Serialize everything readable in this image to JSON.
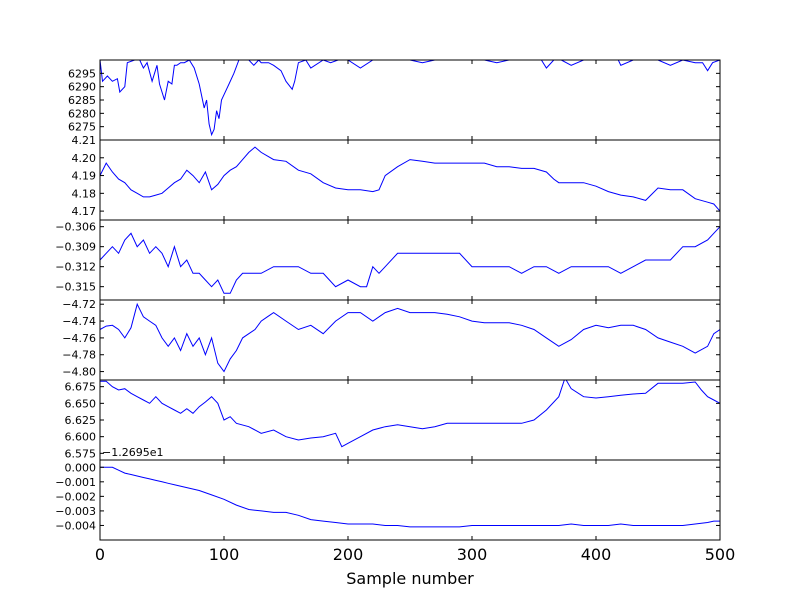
{
  "chart_data": {
    "type": "line",
    "xlabel": "Sample number",
    "xlim": [
      0,
      500
    ],
    "xticks": [
      0,
      100,
      200,
      300,
      400,
      500
    ],
    "line_color": "#0000ff",
    "panels": [
      {
        "ylim": [
          6270,
          6300
        ],
        "yticks": [
          "6275",
          "6280",
          "6285",
          "6290",
          "6295"
        ],
        "yvalues": [
          6275,
          6280,
          6285,
          6290,
          6295
        ],
        "series": {
          "x": [
            0,
            2,
            6,
            10,
            14,
            16,
            20,
            22,
            28,
            32,
            35,
            38,
            42,
            46,
            48,
            50,
            52,
            55,
            58,
            60,
            62,
            65,
            68,
            72,
            76,
            80,
            84,
            86,
            88,
            90,
            92,
            94,
            96,
            98,
            100,
            104,
            108,
            112,
            116,
            120,
            124,
            128,
            130,
            136,
            140,
            146,
            150,
            155,
            157,
            160,
            166,
            170,
            180,
            186,
            192,
            200,
            210,
            220,
            230,
            240,
            250,
            260,
            270,
            280,
            290,
            300,
            310,
            320,
            330,
            340,
            350,
            356,
            360,
            366,
            372,
            380,
            390,
            400,
            410,
            418,
            420,
            430,
            440,
            450,
            460,
            470,
            480,
            486,
            490,
            494,
            500
          ],
          "y": [
            6300,
            6292,
            6294,
            6292,
            6293,
            6288,
            6290,
            6299,
            6300,
            6300,
            6297,
            6299,
            6292,
            6298,
            6291,
            6288,
            6285,
            6292,
            6291,
            6298,
            6298,
            6299,
            6299,
            6300,
            6297,
            6291,
            6282,
            6285,
            6276,
            6272,
            6274,
            6281,
            6278,
            6285,
            6287,
            6291,
            6295,
            6300,
            6300,
            6300,
            6298,
            6300,
            6299,
            6299,
            6298,
            6296,
            6292,
            6289,
            6292,
            6299,
            6300,
            6297,
            6300,
            6299,
            6300,
            6300,
            6297,
            6300,
            6300,
            6300,
            6300,
            6299,
            6300,
            6300,
            6300,
            6300,
            6300,
            6299,
            6300,
            6300,
            6300,
            6300,
            6297,
            6300,
            6300,
            6298,
            6300,
            6300,
            6300,
            6300,
            6298,
            6300,
            6300,
            6300,
            6298,
            6300,
            6299,
            6299,
            6296,
            6299,
            6300
          ]
        }
      },
      {
        "ylim": [
          4.165,
          4.21
        ],
        "yticks": [
          "4.17",
          "4.18",
          "4.19",
          "4.20",
          "4.21"
        ],
        "yvalues": [
          4.17,
          4.18,
          4.19,
          4.2,
          4.21
        ],
        "series": {
          "x": [
            0,
            5,
            10,
            15,
            20,
            25,
            30,
            35,
            40,
            45,
            50,
            55,
            60,
            65,
            70,
            75,
            80,
            85,
            90,
            95,
            100,
            105,
            110,
            115,
            120,
            125,
            130,
            140,
            150,
            160,
            170,
            180,
            190,
            200,
            210,
            220,
            225,
            230,
            240,
            250,
            260,
            270,
            280,
            290,
            300,
            310,
            320,
            330,
            340,
            350,
            360,
            366,
            370,
            380,
            390,
            400,
            410,
            420,
            430,
            440,
            450,
            460,
            470,
            480,
            490,
            495,
            500
          ],
          "y": [
            4.19,
            4.197,
            4.192,
            4.188,
            4.186,
            4.182,
            4.18,
            4.178,
            4.178,
            4.179,
            4.18,
            4.183,
            4.186,
            4.188,
            4.193,
            4.19,
            4.186,
            4.192,
            4.182,
            4.185,
            4.19,
            4.193,
            4.195,
            4.199,
            4.203,
            4.206,
            4.203,
            4.199,
            4.198,
            4.193,
            4.191,
            4.186,
            4.183,
            4.182,
            4.182,
            4.181,
            4.182,
            4.19,
            4.195,
            4.199,
            4.198,
            4.197,
            4.197,
            4.197,
            4.197,
            4.197,
            4.195,
            4.195,
            4.194,
            4.194,
            4.192,
            4.188,
            4.186,
            4.186,
            4.186,
            4.184,
            4.181,
            4.179,
            4.178,
            4.176,
            4.183,
            4.182,
            4.182,
            4.177,
            4.175,
            4.174,
            4.17
          ]
        }
      },
      {
        "ylim": [
          -0.317,
          -0.305
        ],
        "yticks": [
          "−0.306",
          "−0.309",
          "−0.312",
          "−0.315"
        ],
        "yvalues": [
          -0.306,
          -0.309,
          -0.312,
          -0.315
        ],
        "series": {
          "x": [
            0,
            5,
            10,
            15,
            20,
            25,
            30,
            35,
            40,
            45,
            50,
            55,
            60,
            65,
            70,
            75,
            80,
            85,
            90,
            95,
            100,
            105,
            110,
            115,
            120,
            130,
            140,
            150,
            160,
            170,
            180,
            190,
            200,
            210,
            215,
            220,
            225,
            230,
            240,
            250,
            260,
            270,
            280,
            290,
            300,
            310,
            320,
            330,
            340,
            350,
            360,
            370,
            380,
            390,
            400,
            410,
            420,
            430,
            440,
            450,
            460,
            470,
            480,
            490,
            495,
            500
          ],
          "y": [
            -0.311,
            -0.31,
            -0.309,
            -0.31,
            -0.308,
            -0.307,
            -0.309,
            -0.308,
            -0.31,
            -0.309,
            -0.31,
            -0.312,
            -0.309,
            -0.312,
            -0.311,
            -0.313,
            -0.313,
            -0.314,
            -0.315,
            -0.314,
            -0.316,
            -0.316,
            -0.314,
            -0.313,
            -0.313,
            -0.313,
            -0.312,
            -0.312,
            -0.312,
            -0.313,
            -0.313,
            -0.315,
            -0.314,
            -0.315,
            -0.315,
            -0.312,
            -0.313,
            -0.312,
            -0.31,
            -0.31,
            -0.31,
            -0.31,
            -0.31,
            -0.31,
            -0.312,
            -0.312,
            -0.312,
            -0.312,
            -0.313,
            -0.312,
            -0.312,
            -0.313,
            -0.312,
            -0.312,
            -0.312,
            -0.312,
            -0.313,
            -0.312,
            -0.311,
            -0.311,
            -0.311,
            -0.309,
            -0.309,
            -0.308,
            -0.307,
            -0.306
          ]
        }
      },
      {
        "ylim": [
          -4.81,
          -4.715
        ],
        "yticks": [
          "−4.72",
          "−4.74",
          "−4.76",
          "−4.78",
          "−4.80"
        ],
        "yvalues": [
          -4.72,
          -4.74,
          -4.76,
          -4.78,
          -4.8
        ],
        "series": {
          "x": [
            0,
            5,
            10,
            15,
            20,
            25,
            30,
            35,
            40,
            45,
            50,
            55,
            60,
            65,
            70,
            75,
            80,
            85,
            90,
            95,
            100,
            105,
            110,
            115,
            120,
            125,
            130,
            135,
            140,
            150,
            160,
            170,
            180,
            190,
            200,
            210,
            220,
            230,
            240,
            250,
            260,
            270,
            280,
            290,
            300,
            310,
            320,
            330,
            340,
            350,
            360,
            370,
            380,
            390,
            400,
            410,
            420,
            430,
            440,
            450,
            460,
            470,
            480,
            490,
            495,
            500
          ],
          "y": [
            -4.75,
            -4.746,
            -4.745,
            -4.75,
            -4.76,
            -4.748,
            -4.72,
            -4.735,
            -4.74,
            -4.745,
            -4.76,
            -4.77,
            -4.76,
            -4.775,
            -4.755,
            -4.77,
            -4.76,
            -4.78,
            -4.76,
            -4.79,
            -4.8,
            -4.785,
            -4.775,
            -4.76,
            -4.755,
            -4.75,
            -4.74,
            -4.735,
            -4.73,
            -4.74,
            -4.75,
            -4.745,
            -4.755,
            -4.74,
            -4.73,
            -4.73,
            -4.74,
            -4.73,
            -4.725,
            -4.73,
            -4.73,
            -4.73,
            -4.732,
            -4.735,
            -4.74,
            -4.742,
            -4.742,
            -4.742,
            -4.745,
            -4.75,
            -4.76,
            -4.77,
            -4.762,
            -4.75,
            -4.745,
            -4.748,
            -4.745,
            -4.745,
            -4.75,
            -4.76,
            -4.765,
            -4.77,
            -4.778,
            -4.77,
            -4.755,
            -4.75
          ]
        }
      },
      {
        "ylim": [
          6.565,
          6.685
        ],
        "yticks": [
          "6.675",
          "6.650",
          "6.625",
          "6.600",
          "6.575"
        ],
        "yvalues": [
          6.675,
          6.65,
          6.625,
          6.6,
          6.575
        ],
        "offset_label": "−1.2695e1",
        "series": {
          "x": [
            0,
            5,
            10,
            15,
            20,
            25,
            30,
            35,
            40,
            45,
            50,
            55,
            60,
            65,
            70,
            75,
            80,
            85,
            90,
            95,
            100,
            105,
            110,
            120,
            130,
            140,
            150,
            160,
            170,
            180,
            190,
            195,
            200,
            210,
            220,
            230,
            240,
            250,
            260,
            270,
            280,
            290,
            300,
            310,
            320,
            330,
            340,
            350,
            360,
            370,
            375,
            380,
            390,
            400,
            410,
            420,
            430,
            440,
            450,
            460,
            470,
            480,
            485,
            490,
            495,
            500
          ],
          "y": [
            6.683,
            6.683,
            6.675,
            6.67,
            6.672,
            6.665,
            6.66,
            6.655,
            6.65,
            6.66,
            6.65,
            6.645,
            6.64,
            6.635,
            6.642,
            6.635,
            6.645,
            6.652,
            6.66,
            6.65,
            6.625,
            6.63,
            6.62,
            6.615,
            6.605,
            6.61,
            6.6,
            6.595,
            6.598,
            6.6,
            6.605,
            6.585,
            6.59,
            6.6,
            6.61,
            6.615,
            6.618,
            6.615,
            6.612,
            6.615,
            6.62,
            6.62,
            6.62,
            6.62,
            6.62,
            6.62,
            6.62,
            6.625,
            6.64,
            6.66,
            6.688,
            6.672,
            6.66,
            6.658,
            6.66,
            6.662,
            6.664,
            6.665,
            6.68,
            6.68,
            6.68,
            6.682,
            6.67,
            6.66,
            6.655,
            6.65
          ]
        }
      },
      {
        "ylim": [
          -0.005,
          0.0005
        ],
        "yticks": [
          "0.000",
          "−0.001",
          "−0.002",
          "−0.003",
          "−0.004"
        ],
        "yvalues": [
          0,
          -0.001,
          -0.002,
          -0.003,
          -0.004
        ],
        "series": {
          "x": [
            0,
            5,
            10,
            15,
            20,
            25,
            30,
            35,
            40,
            45,
            50,
            55,
            60,
            70,
            80,
            90,
            100,
            110,
            120,
            130,
            140,
            150,
            160,
            170,
            180,
            190,
            200,
            210,
            220,
            230,
            240,
            250,
            260,
            270,
            280,
            290,
            300,
            310,
            320,
            330,
            340,
            350,
            360,
            370,
            380,
            390,
            400,
            410,
            420,
            430,
            440,
            450,
            460,
            470,
            480,
            490,
            495,
            500
          ],
          "y": [
            0.0,
            0.0,
            0.0,
            -0.0002,
            -0.0004,
            -0.0005,
            -0.0006,
            -0.0007,
            -0.0008,
            -0.0009,
            -0.001,
            -0.0011,
            -0.0012,
            -0.0014,
            -0.0016,
            -0.0019,
            -0.0022,
            -0.0026,
            -0.0029,
            -0.003,
            -0.0031,
            -0.0031,
            -0.0033,
            -0.0036,
            -0.0037,
            -0.0038,
            -0.0039,
            -0.0039,
            -0.0039,
            -0.004,
            -0.004,
            -0.0041,
            -0.0041,
            -0.0041,
            -0.0041,
            -0.0041,
            -0.004,
            -0.004,
            -0.004,
            -0.004,
            -0.004,
            -0.004,
            -0.004,
            -0.004,
            -0.0039,
            -0.004,
            -0.004,
            -0.004,
            -0.0039,
            -0.004,
            -0.004,
            -0.004,
            -0.004,
            -0.004,
            -0.0039,
            -0.0038,
            -0.0037,
            -0.0037
          ]
        }
      }
    ]
  }
}
